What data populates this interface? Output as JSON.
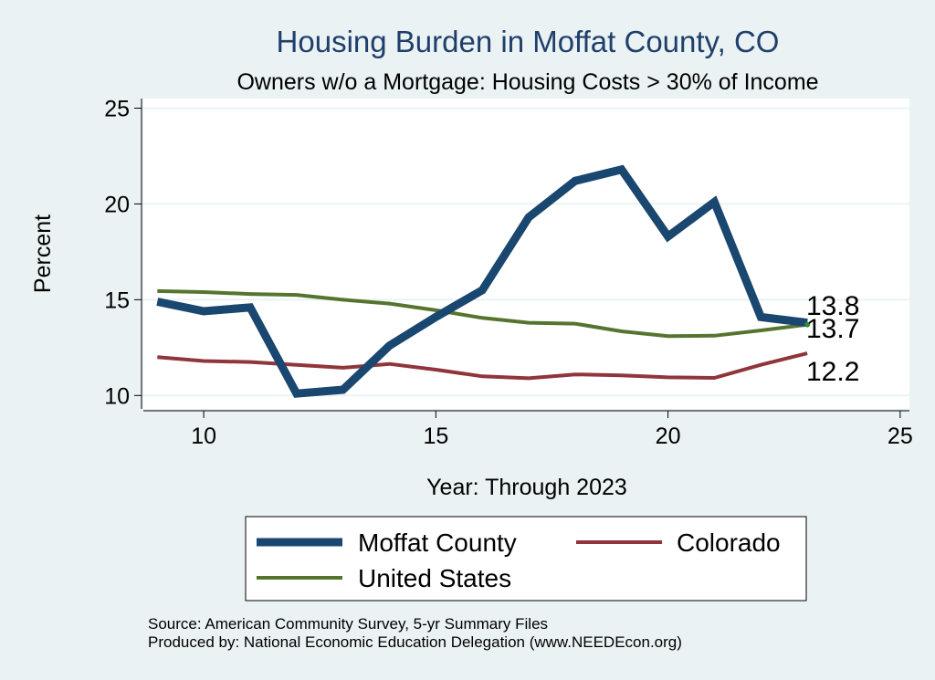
{
  "chart_data": {
    "type": "line",
    "title": "Housing Burden in Moffat County, CO",
    "subtitle": "Owners w/o a Mortgage: Housing Costs > 30% of Income",
    "xlabel": "Year: Through 2023",
    "ylabel": "Percent",
    "xlim": [
      8.7,
      25.2
    ],
    "ylim": [
      9.3,
      25.5
    ],
    "xticks": [
      10,
      15,
      20,
      25
    ],
    "yticks": [
      10,
      15,
      20,
      25
    ],
    "grid": true,
    "x": [
      9,
      10,
      11,
      12,
      13,
      14,
      15,
      16,
      17,
      18,
      19,
      20,
      21,
      22,
      23
    ],
    "series": [
      {
        "name": "Moffat County",
        "color": "#1a476f",
        "values": [
          14.9,
          14.4,
          14.6,
          10.1,
          10.3,
          12.6,
          14.1,
          15.5,
          19.3,
          21.2,
          21.8,
          18.3,
          20.1,
          14.1,
          13.8
        ],
        "end_label": "13.8"
      },
      {
        "name": "Colorado",
        "color": "#90353b",
        "values": [
          12.0,
          11.8,
          11.75,
          11.6,
          11.45,
          11.65,
          11.35,
          11.0,
          10.9,
          11.1,
          11.05,
          10.95,
          10.92,
          11.6,
          12.2
        ],
        "end_label": "12.2"
      },
      {
        "name": "United States",
        "color": "#55752f",
        "values": [
          15.45,
          15.4,
          15.3,
          15.25,
          15.0,
          14.8,
          14.45,
          14.05,
          13.8,
          13.75,
          13.35,
          13.1,
          13.12,
          13.4,
          13.7
        ],
        "end_label": "13.7"
      }
    ],
    "legend": {
      "position": "bottom",
      "items": [
        "Moffat County",
        "Colorado",
        "United States"
      ]
    },
    "source_lines": [
      "Source: American Community Survey, 5-yr Summary Files",
      "Produced by: National Economic Education Delegation (www.NEEDEcon.org)"
    ]
  }
}
